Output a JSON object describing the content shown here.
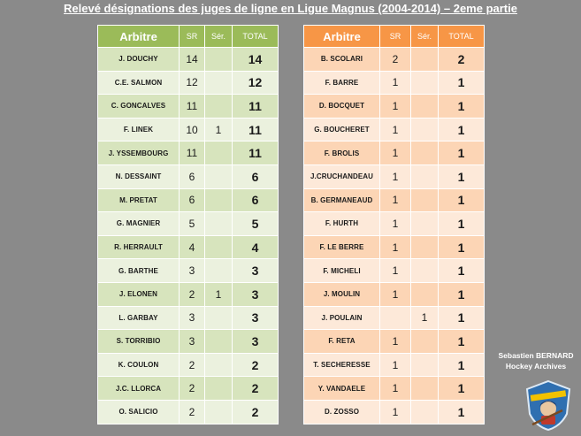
{
  "title": "Relevé désignations des juges de ligne en Ligue Magnus (2004-2014) – 2eme partie",
  "headers": {
    "name": "Arbitre",
    "sr": "SR",
    "ser": "Sér.",
    "total": "TOTAL"
  },
  "left_rows": [
    {
      "name": "J. DOUCHY",
      "sr": "14",
      "ser": "",
      "total": "14"
    },
    {
      "name": "C.E. SALMON",
      "sr": "12",
      "ser": "",
      "total": "12"
    },
    {
      "name": "C. GONCALVES",
      "sr": "11",
      "ser": "",
      "total": "11"
    },
    {
      "name": "F. LINEK",
      "sr": "10",
      "ser": "1",
      "total": "11"
    },
    {
      "name": "J. YSSEMBOURG",
      "sr": "11",
      "ser": "",
      "total": "11"
    },
    {
      "name": "N. DESSAINT",
      "sr": "6",
      "ser": "",
      "total": "6"
    },
    {
      "name": "M. PRETAT",
      "sr": "6",
      "ser": "",
      "total": "6"
    },
    {
      "name": "G. MAGNIER",
      "sr": "5",
      "ser": "",
      "total": "5"
    },
    {
      "name": "R. HERRAULT",
      "sr": "4",
      "ser": "",
      "total": "4"
    },
    {
      "name": "G. BARTHE",
      "sr": "3",
      "ser": "",
      "total": "3"
    },
    {
      "name": "J. ELONEN",
      "sr": "2",
      "ser": "1",
      "total": "3"
    },
    {
      "name": "L. GARBAY",
      "sr": "3",
      "ser": "",
      "total": "3"
    },
    {
      "name": "S. TORRIBIO",
      "sr": "3",
      "ser": "",
      "total": "3"
    },
    {
      "name": "K. COULON",
      "sr": "2",
      "ser": "",
      "total": "2"
    },
    {
      "name": "J.C. LLORCA",
      "sr": "2",
      "ser": "",
      "total": "2"
    },
    {
      "name": "O. SALICIO",
      "sr": "2",
      "ser": "",
      "total": "2"
    }
  ],
  "right_rows": [
    {
      "name": "B. SCOLARI",
      "sr": "2",
      "ser": "",
      "total": "2"
    },
    {
      "name": "F. BARRE",
      "sr": "1",
      "ser": "",
      "total": "1"
    },
    {
      "name": "D. BOCQUET",
      "sr": "1",
      "ser": "",
      "total": "1"
    },
    {
      "name": "G. BOUCHERET",
      "sr": "1",
      "ser": "",
      "total": "1"
    },
    {
      "name": "F. BROLIS",
      "sr": "1",
      "ser": "",
      "total": "1"
    },
    {
      "name": "J.CRUCHANDEAU",
      "sr": "1",
      "ser": "",
      "total": "1"
    },
    {
      "name": "B. GERMANEAUD",
      "sr": "1",
      "ser": "",
      "total": "1"
    },
    {
      "name": "F. HURTH",
      "sr": "1",
      "ser": "",
      "total": "1"
    },
    {
      "name": "F. LE BERRE",
      "sr": "1",
      "ser": "",
      "total": "1"
    },
    {
      "name": "F. MICHELI",
      "sr": "1",
      "ser": "",
      "total": "1"
    },
    {
      "name": "J. MOULIN",
      "sr": "1",
      "ser": "",
      "total": "1"
    },
    {
      "name": "J. POULAIN",
      "sr": "",
      "ser": "1",
      "total": "1"
    },
    {
      "name": "F. RETA",
      "sr": "1",
      "ser": "",
      "total": "1"
    },
    {
      "name": "T. SECHERESSE",
      "sr": "1",
      "ser": "",
      "total": "1"
    },
    {
      "name": "Y. VANDAELE",
      "sr": "1",
      "ser": "",
      "total": "1"
    },
    {
      "name": "D. ZOSSO",
      "sr": "1",
      "ser": "",
      "total": "1"
    }
  ],
  "credit": {
    "line1": "Sebastien BERNARD",
    "line2": "Hockey Archives"
  },
  "logo_icon": "hockey-archives-logo-icon",
  "colors": {
    "left_header": "#9bbb59",
    "left_odd": "#d7e4bd",
    "left_even": "#ebf1de",
    "right_header": "#f79646",
    "right_odd": "#fcd5b5",
    "right_even": "#fde9d9",
    "background": "#8a8a8a"
  }
}
